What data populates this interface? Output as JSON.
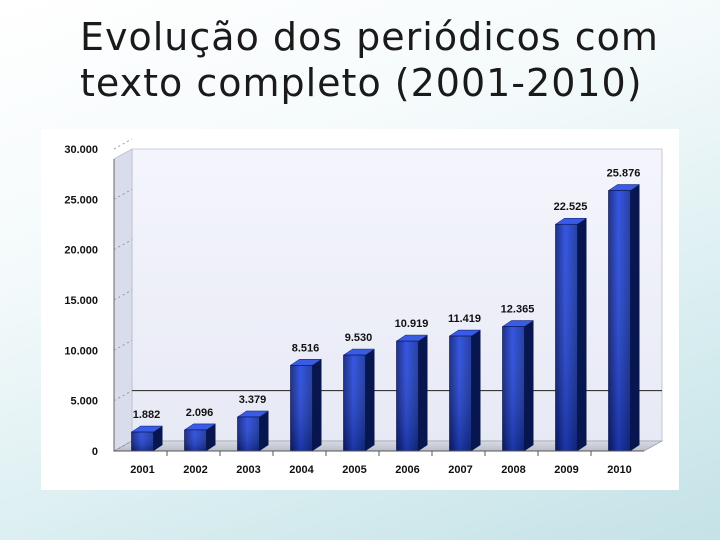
{
  "slide": {
    "title_line1": "Evolução dos periódicos com",
    "title_line2": "texto completo (2001-2010)"
  },
  "chart_data": {
    "type": "bar",
    "categories": [
      "2001",
      "2002",
      "2003",
      "2004",
      "2005",
      "2006",
      "2007",
      "2008",
      "2009",
      "2010"
    ],
    "values": [
      1882,
      2096,
      3379,
      8516,
      9530,
      10919,
      11419,
      12365,
      22525,
      25876
    ],
    "value_labels": [
      "1.882",
      "2.096",
      "3.379",
      "8.516",
      "9.530",
      "10.919",
      "11.419",
      "12.365",
      "22.525",
      "25.876"
    ],
    "y_ticks": [
      0,
      5000,
      10000,
      15000,
      20000,
      25000,
      30000
    ],
    "y_tick_labels": [
      "0",
      "5.000",
      "10.000",
      "15.000",
      "20.000",
      "25.000",
      "30.000"
    ],
    "ylim": [
      0,
      30000
    ],
    "title": "",
    "xlabel": "",
    "ylabel": "",
    "grid": false,
    "legend": "none",
    "colors": {
      "bar_dark": "#0b1f7a",
      "bar_mid": "#1e3fd6",
      "bar_light": "#4a6cf0",
      "bar_top": "#3a5be6",
      "bar_side": "#081650",
      "wall": "#eef0fa",
      "floor": "#cfd2dc"
    }
  }
}
